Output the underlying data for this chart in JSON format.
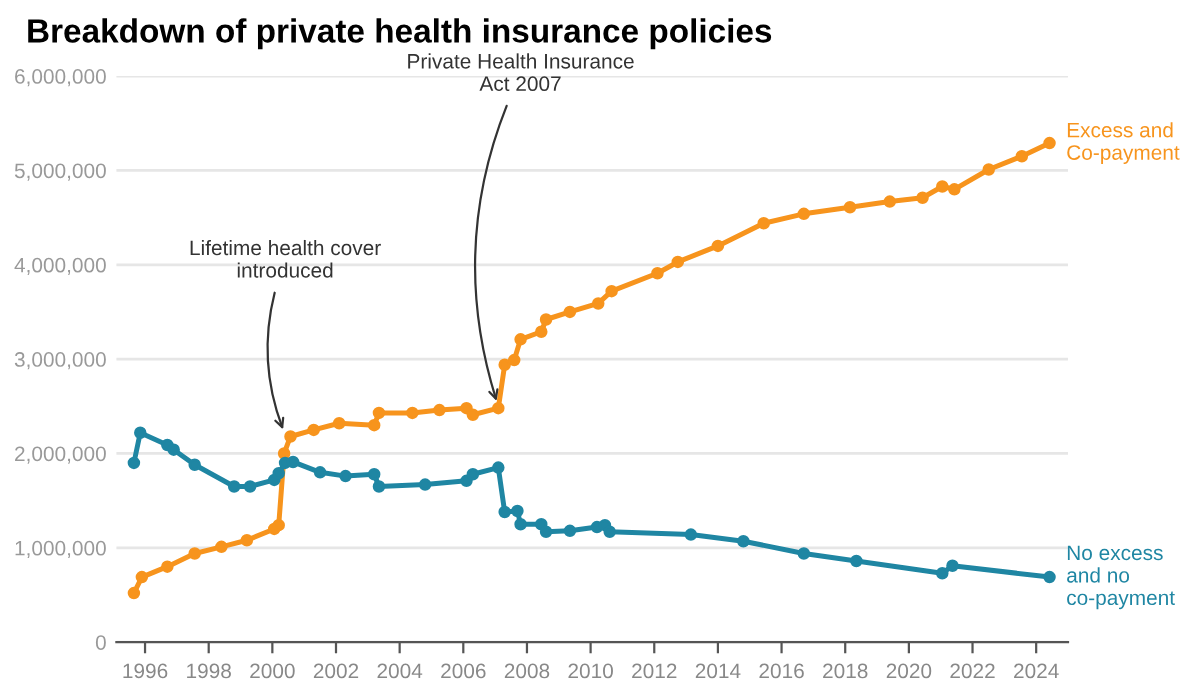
{
  "chart_data": {
    "type": "line",
    "title": "Breakdown of private health insurance policies",
    "xlim": [
      1995.1,
      2025
    ],
    "xticks": [
      1996,
      1998,
      2000,
      2002,
      2004,
      2006,
      2008,
      2010,
      2012,
      2014,
      2016,
      2018,
      2020,
      2022,
      2024
    ],
    "ylim": [
      0,
      6000000
    ],
    "yticks": [
      {
        "value": 0,
        "label": "0"
      },
      {
        "value": 1000000,
        "label": "1,000,000"
      },
      {
        "value": 2000000,
        "label": "2,000,000"
      },
      {
        "value": 3000000,
        "label": "3,000,000"
      },
      {
        "value": 4000000,
        "label": "4,000,000"
      },
      {
        "value": 5000000,
        "label": "5,000,000"
      },
      {
        "value": 6000000,
        "label": "6,000,000"
      }
    ],
    "grid": "y",
    "legend": false,
    "marker": "circle",
    "line_style": "solid",
    "series": [
      {
        "name": "Excess and Co-payment",
        "color": "#f7941d",
        "x": [
          1995.65,
          1995.9,
          1996.7,
          1997.56,
          1998.4,
          1999.2,
          2000.06,
          2000.2,
          2000.37,
          2000.57,
          2001.3,
          2002.1,
          2003.2,
          2003.35,
          2004.4,
          2005.25,
          2006.1,
          2006.3,
          2007.1,
          2007.3,
          2007.6,
          2007.8,
          2008.45,
          2008.6,
          2009.35,
          2010.24,
          2010.66,
          2012.1,
          2012.74,
          2014.0,
          2015.44,
          2016.7,
          2018.15,
          2019.4,
          2020.43,
          2021.05,
          2021.43,
          2022.51,
          2023.55,
          2024.42
        ],
        "values": [
          520000,
          690000,
          800000,
          940000,
          1010000,
          1080000,
          1200000,
          1240000,
          2000000,
          2180000,
          2250000,
          2320000,
          2300000,
          2430000,
          2430000,
          2460000,
          2480000,
          2410000,
          2480000,
          2940000,
          2990000,
          3210000,
          3290000,
          3420000,
          3500000,
          3590000,
          3720000,
          3910000,
          4030000,
          4200000,
          4440000,
          4540000,
          4610000,
          4670000,
          4710000,
          4830000,
          4800000,
          5010000,
          5150000,
          5290000
        ]
      },
      {
        "name": "No excess and no co-payment",
        "color": "#1f86a3",
        "x": [
          1995.65,
          1995.85,
          1996.7,
          1996.9,
          1997.56,
          1998.8,
          1999.3,
          2000.06,
          2000.2,
          2000.4,
          2000.65,
          2001.5,
          2002.3,
          2003.2,
          2003.35,
          2004.8,
          2006.1,
          2006.3,
          2007.1,
          2007.3,
          2007.7,
          2007.8,
          2008.45,
          2008.6,
          2009.35,
          2010.2,
          2010.45,
          2010.6,
          2013.15,
          2014.8,
          2016.7,
          2018.35,
          2021.05,
          2021.37,
          2024.42
        ],
        "values": [
          1900000,
          2220000,
          2090000,
          2040000,
          1880000,
          1650000,
          1650000,
          1720000,
          1790000,
          1900000,
          1910000,
          1800000,
          1760000,
          1780000,
          1650000,
          1670000,
          1710000,
          1780000,
          1850000,
          1380000,
          1390000,
          1250000,
          1250000,
          1170000,
          1180000,
          1220000,
          1240000,
          1170000,
          1140000,
          1070000,
          940000,
          860000,
          730000,
          810000,
          690000
        ]
      }
    ],
    "annotations": [
      {
        "text": "Lifetime health cover\nintroduced",
        "x": 2000.4,
        "y": 2200000
      },
      {
        "text": "Private Health Insurance\nAct 2007",
        "x": 2007.1,
        "y": 2500000
      }
    ]
  }
}
